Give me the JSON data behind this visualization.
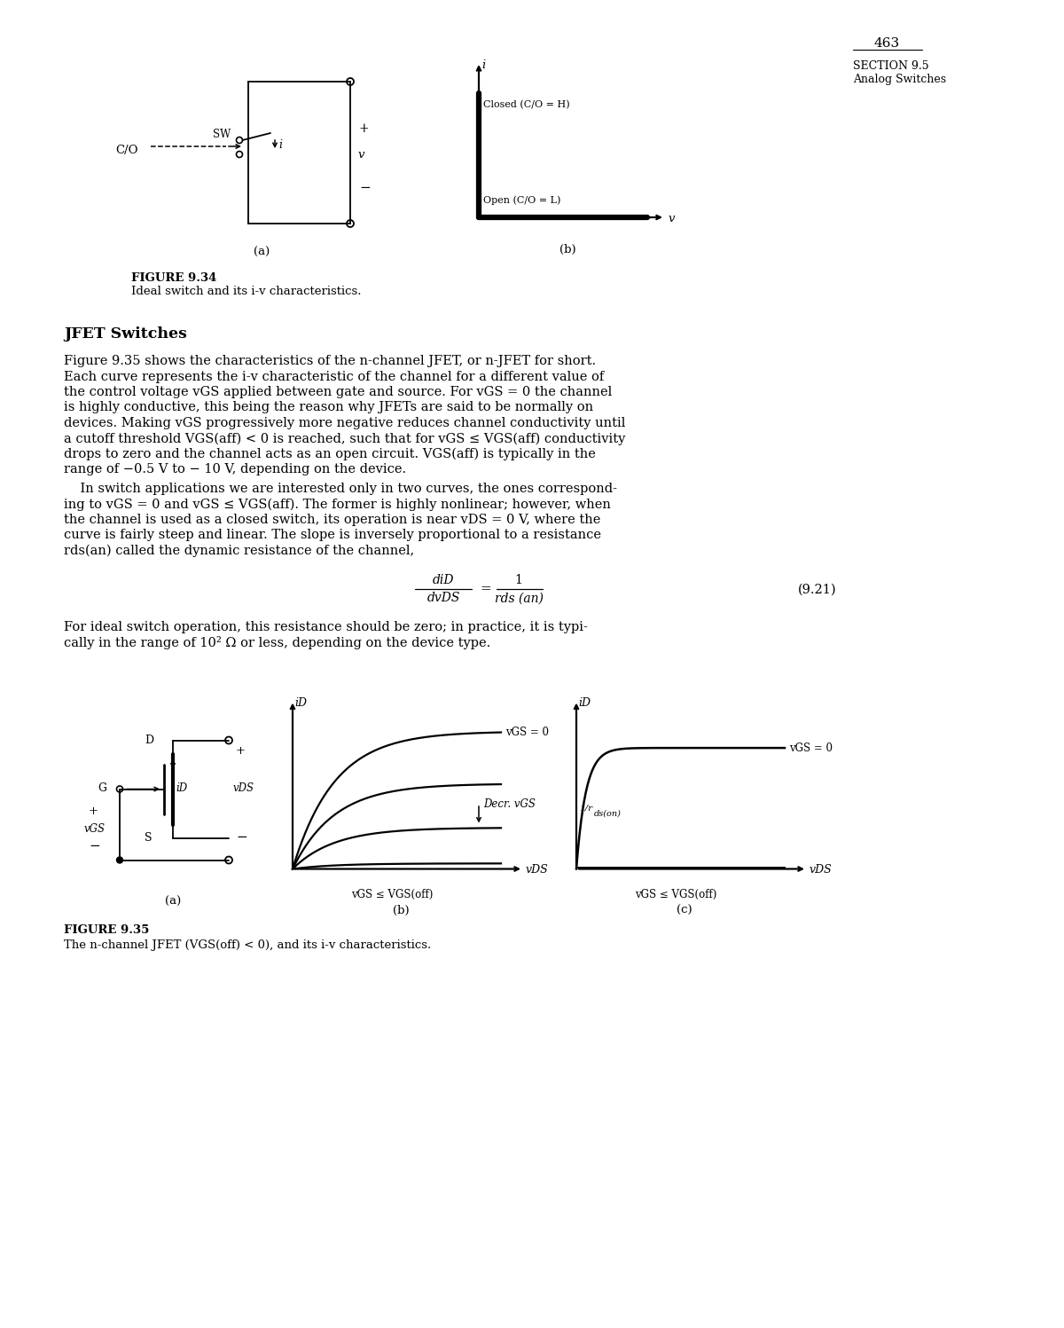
{
  "page_number": "463",
  "section_label": "SECTION 9.5",
  "section_title_hdr": "Analog Switches",
  "fig934_label": "FIGURE 9.34",
  "fig934_caption": "Ideal switch and its i-v characteristics.",
  "section_heading": "JFET Switches",
  "para1": [
    "Figure 9.35 shows the characteristics of the n-channel JFET, or n-JFET for short.",
    "Each curve represents the i-v characteristic of the channel for a different value of",
    "the control voltage vGS applied between gate and source. For vGS = 0 the channel",
    "is highly conductive, this being the reason why JFETs are said to be normally on",
    "devices. Making vGS progressively more negative reduces channel conductivity until",
    "a cutoff threshold VGS(aff) < 0 is reached, such that for vGS <= VGS(aff) conductivity",
    "drops to zero and the channel acts as an open circuit. VGS(aff) is typically in the",
    "range of -0.5 V to - 10 V, depending on the device."
  ],
  "para2": [
    "    In switch applications we are interested only in two curves, the ones correspond-",
    "ing to vGS = 0 and vGS <= VGS(aff). The former is highly nonlinear; however, when",
    "the channel is used as a closed switch, its operation is near vDS = 0 V, where the",
    "curve is fairly steep and linear. The slope is inversely proportional to a resistance",
    "rds(an) called the dynamic resistance of the channel,"
  ],
  "para3": [
    "For ideal switch operation, this resistance should be zero; in practice, it is typi-",
    "cally in the range of 10^2 Ohm or less, depending on the device type."
  ],
  "fig935_label": "FIGURE 9.35",
  "fig935_caption": "The n-channel JFET (VGS(off) < 0), and its i-v characteristics.",
  "bg": "#ffffff"
}
